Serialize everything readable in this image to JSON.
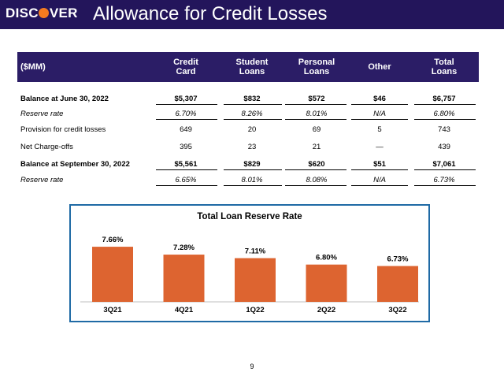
{
  "header": {
    "logo_text": "DISCOVER",
    "title": "Allowance for Credit Losses"
  },
  "table": {
    "columns": [
      "($MM)",
      "Credit Card",
      "Student Loans",
      "Personal Loans",
      "Other",
      "Total Loans"
    ],
    "rows": [
      {
        "label": "Balance at June 30, 2022",
        "values": [
          "$5,307",
          "$832",
          "$572",
          "$46",
          "$6,757"
        ],
        "style": "bold-underlined"
      },
      {
        "label": "Reserve rate",
        "values": [
          "6.70%",
          "8.26%",
          "8.01%",
          "N/A",
          "6.80%"
        ],
        "style": "italic"
      },
      {
        "label": "Provision for credit losses",
        "values": [
          "649",
          "20",
          "69",
          "5",
          "743"
        ],
        "style": "plain"
      },
      {
        "label": "Net Charge-offs",
        "values": [
          "395",
          "23",
          "21",
          "—",
          "439"
        ],
        "style": "plain"
      },
      {
        "label": "Balance at September 30, 2022",
        "values": [
          "$5,561",
          "$829",
          "$620",
          "$51",
          "$7,061"
        ],
        "style": "bold-underlined"
      },
      {
        "label": "Reserve rate",
        "values": [
          "6.65%",
          "8.01%",
          "8.08%",
          "N/A",
          "6.73%"
        ],
        "style": "italic"
      }
    ]
  },
  "chart_data": {
    "type": "bar",
    "title": "Total Loan Reserve Rate",
    "categories": [
      "3Q21",
      "4Q21",
      "1Q22",
      "2Q22",
      "3Q22"
    ],
    "values": [
      7.66,
      7.28,
      7.11,
      6.8,
      6.73
    ],
    "value_labels": [
      "7.66%",
      "7.28%",
      "7.11%",
      "6.80%",
      "6.73%"
    ],
    "bar_color": "#dd6430",
    "ylim": [
      5.0,
      8.5
    ]
  },
  "footer": {
    "page_number": "9"
  },
  "colors": {
    "header_bg": "#23155b",
    "table_header_bg": "#2b1d66",
    "chart_border": "#1f6aa5",
    "logo_accent": "#f47b20"
  }
}
